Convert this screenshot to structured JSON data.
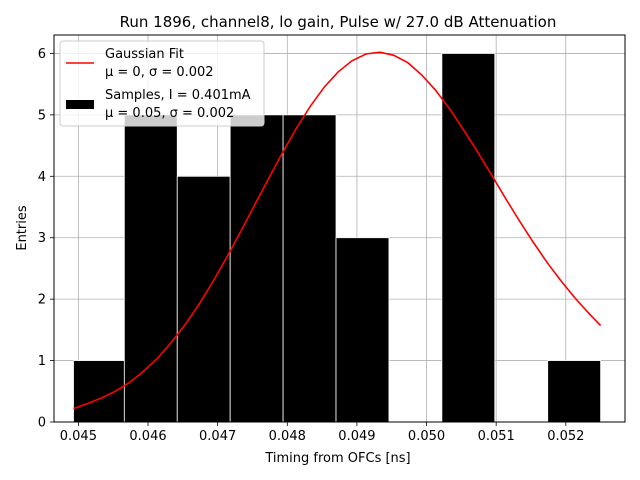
{
  "chart_data": {
    "type": "bar",
    "title": "Run 1896, channel8, lo gain, Pulse w/ 27.0 dB Attenuation",
    "xlabel": "Timing from OFCs [ns]",
    "ylabel": "Entries",
    "xlim": [
      0.04465,
      0.05285
    ],
    "ylim": [
      0,
      6.3
    ],
    "grid": true,
    "x_ticks": [
      0.045,
      0.046,
      0.047,
      0.048,
      0.049,
      0.05,
      0.051,
      0.052
    ],
    "x_tick_labels": [
      "0.045",
      "0.046",
      "0.047",
      "0.048",
      "0.049",
      "0.050",
      "0.051",
      "0.052"
    ],
    "y_ticks": [
      0,
      1,
      2,
      3,
      4,
      5,
      6
    ],
    "y_tick_labels": [
      "0",
      "1",
      "2",
      "3",
      "4",
      "5",
      "6"
    ],
    "histogram": {
      "name": "Samples, I = 0.401mA",
      "stats": "μ = 0.05, σ = 0.002",
      "color": "#000000",
      "bin_edges": [
        0.04493,
        0.04566,
        0.04642,
        0.04718,
        0.04794,
        0.0487,
        0.04946,
        0.05022,
        0.05098,
        0.05174,
        0.0525
      ],
      "counts": [
        1,
        5,
        4,
        5,
        5,
        3,
        0,
        6,
        0,
        1
      ]
    },
    "fit": {
      "name": "Gaussian Fit",
      "stats": "μ = 0, σ = 0.002",
      "color": "#ff0000",
      "x": [
        0.04493,
        0.04513,
        0.04533,
        0.04553,
        0.04573,
        0.04593,
        0.04613,
        0.04633,
        0.04653,
        0.04673,
        0.04693,
        0.04713,
        0.04733,
        0.04753,
        0.04773,
        0.04793,
        0.04813,
        0.04833,
        0.04853,
        0.04873,
        0.04893,
        0.04913,
        0.04933,
        0.04953,
        0.04973,
        0.04993,
        0.05013,
        0.05033,
        0.05053,
        0.05073,
        0.05093,
        0.05113,
        0.05133,
        0.05153,
        0.05173,
        0.05193,
        0.05213,
        0.05233,
        0.0525
      ],
      "y": [
        0.22,
        0.3,
        0.39,
        0.5,
        0.64,
        0.82,
        1.03,
        1.29,
        1.58,
        1.91,
        2.28,
        2.68,
        3.1,
        3.53,
        3.96,
        4.38,
        4.78,
        5.14,
        5.45,
        5.7,
        5.88,
        5.99,
        6.02,
        5.97,
        5.85,
        5.65,
        5.4,
        5.1,
        4.76,
        4.4,
        4.03,
        3.65,
        3.28,
        2.93,
        2.6,
        2.3,
        2.02,
        1.77,
        1.57
      ]
    },
    "legend_position": "top-left"
  }
}
